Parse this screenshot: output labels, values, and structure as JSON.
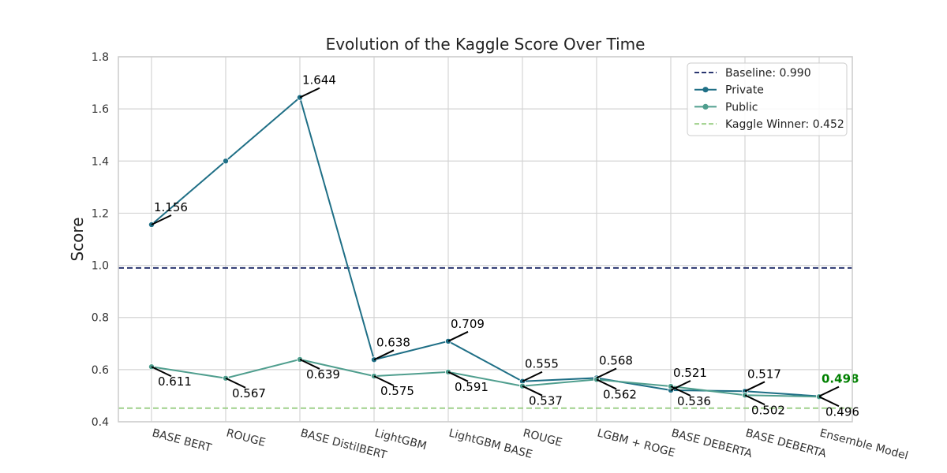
{
  "chart_data": {
    "type": "line",
    "title": "Evolution of the Kaggle Score Over Time",
    "xlabel": "",
    "ylabel": "Score",
    "ylim": [
      0.4,
      1.8
    ],
    "yticks": [
      "0.4",
      "0.6",
      "0.8",
      "1.0",
      "1.2",
      "1.4",
      "1.6",
      "1.8"
    ],
    "grid": true,
    "legend_position": "top-right",
    "categories": [
      "BASE BERT",
      "ROUGE",
      "BASE DistilBERT",
      "LightGBM",
      "LightGBM BASE",
      "ROUGE",
      "LGBM + ROGE",
      "BASE DEBERTA",
      "BASE DEBERTA",
      "Ensemble Model"
    ],
    "series": [
      {
        "name": "Private",
        "color": "#1f6f86",
        "values": [
          1.156,
          1.4,
          1.644,
          0.638,
          0.709,
          0.555,
          0.568,
          0.521,
          0.517,
          0.498
        ],
        "labels": [
          "1.156",
          "",
          "1.644",
          "0.638",
          "0.709",
          "0.555",
          "0.568",
          "0.521",
          "0.517",
          "0.498"
        ]
      },
      {
        "name": "Public",
        "color": "#4f9e8e",
        "values": [
          0.611,
          0.567,
          0.639,
          0.575,
          0.591,
          0.537,
          0.562,
          0.536,
          0.502,
          0.496
        ],
        "labels": [
          "0.611",
          "0.567",
          "0.639",
          "0.575",
          "0.591",
          "0.537",
          "0.562",
          "0.536",
          "0.502",
          "0.496"
        ]
      }
    ],
    "reference_lines": [
      {
        "name": "Baseline: 0.990",
        "value": 0.99,
        "color": "#2a3670"
      },
      {
        "name": "Kaggle Winner: 0.452",
        "value": 0.452,
        "color": "#9fd08a"
      }
    ],
    "highlight_label_color": "#008000"
  }
}
